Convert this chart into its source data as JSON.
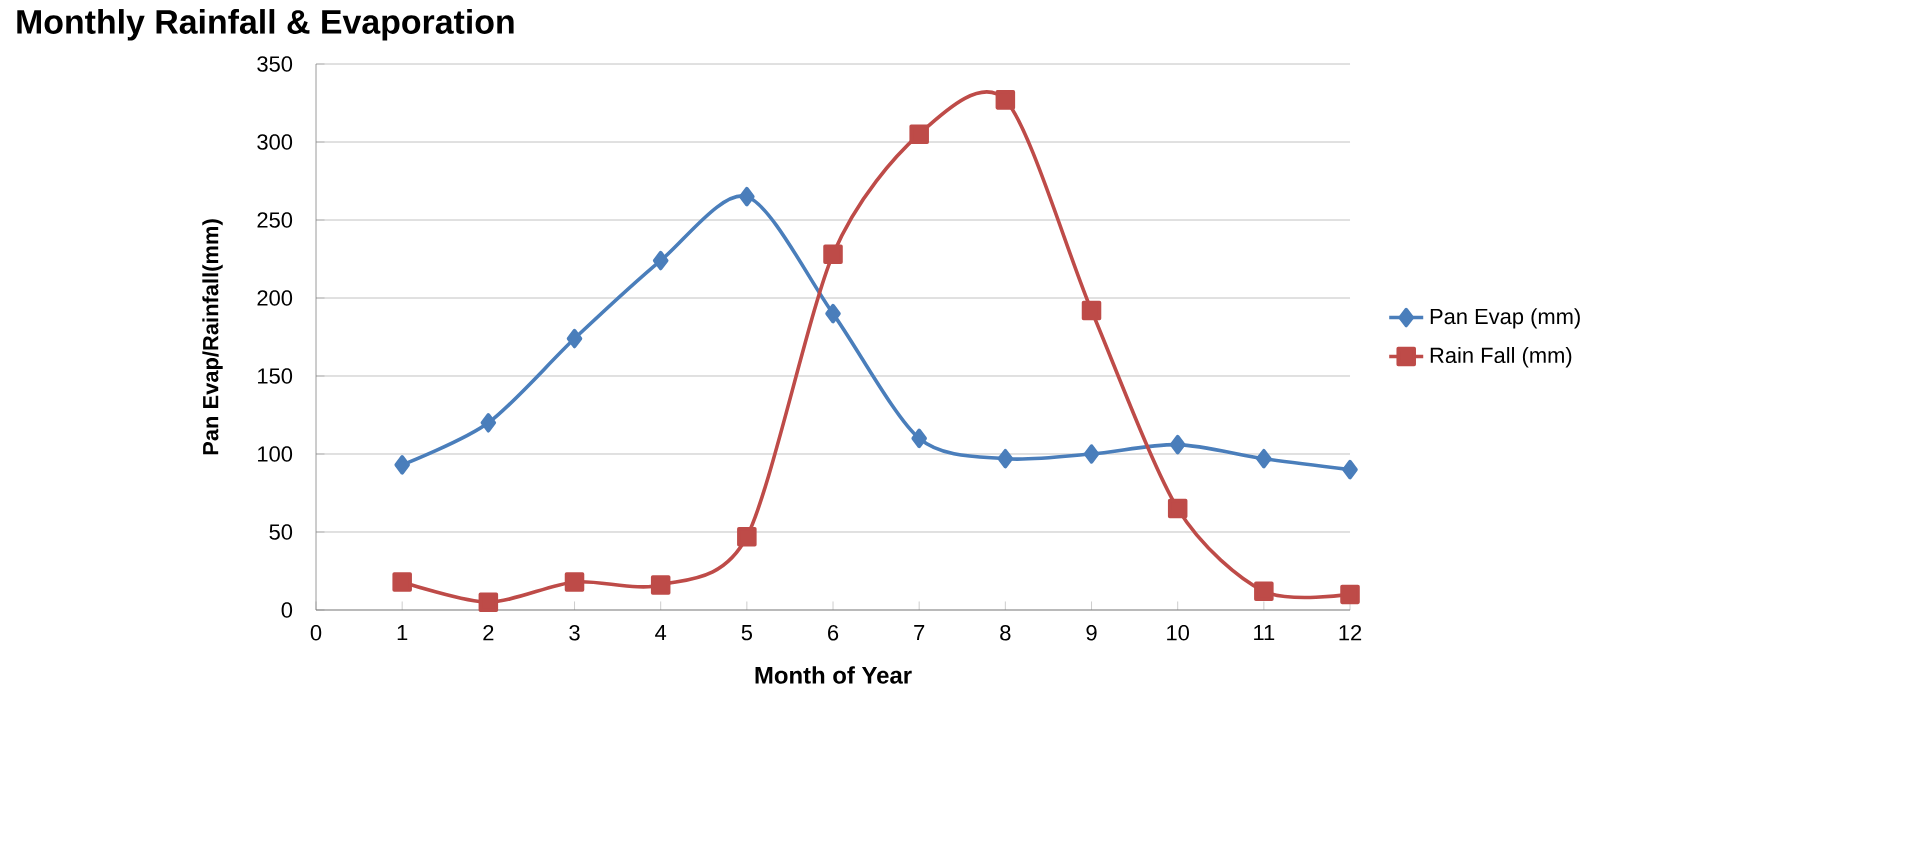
{
  "chart_data": {
    "type": "line",
    "title": "Monthly Rainfall & Evaporation",
    "xlabel": "Month of Year",
    "ylabel": "Pan Evap/Rainfall(mm)",
    "x": [
      1,
      2,
      3,
      4,
      5,
      6,
      7,
      8,
      9,
      10,
      11,
      12
    ],
    "series": [
      {
        "name": "Pan Evap (mm)",
        "color": "#4a7ebb",
        "marker": "diamond",
        "values": [
          93,
          120,
          174,
          224,
          265,
          190,
          110,
          97,
          100,
          106,
          97,
          90
        ]
      },
      {
        "name": "Rain Fall (mm)",
        "color": "#be4b48",
        "marker": "square",
        "values": [
          18,
          5,
          18,
          16,
          47,
          228,
          305,
          327,
          192,
          65,
          12,
          10
        ]
      }
    ],
    "xlim": [
      0,
      12
    ],
    "xticks": [
      0,
      1,
      2,
      3,
      4,
      5,
      6,
      7,
      8,
      9,
      10,
      11,
      12
    ],
    "ylim": [
      0,
      350
    ],
    "yticks": [
      0,
      50,
      100,
      150,
      200,
      250,
      300,
      350
    ],
    "grid": "y",
    "legend": "right",
    "line_style": "solid"
  }
}
